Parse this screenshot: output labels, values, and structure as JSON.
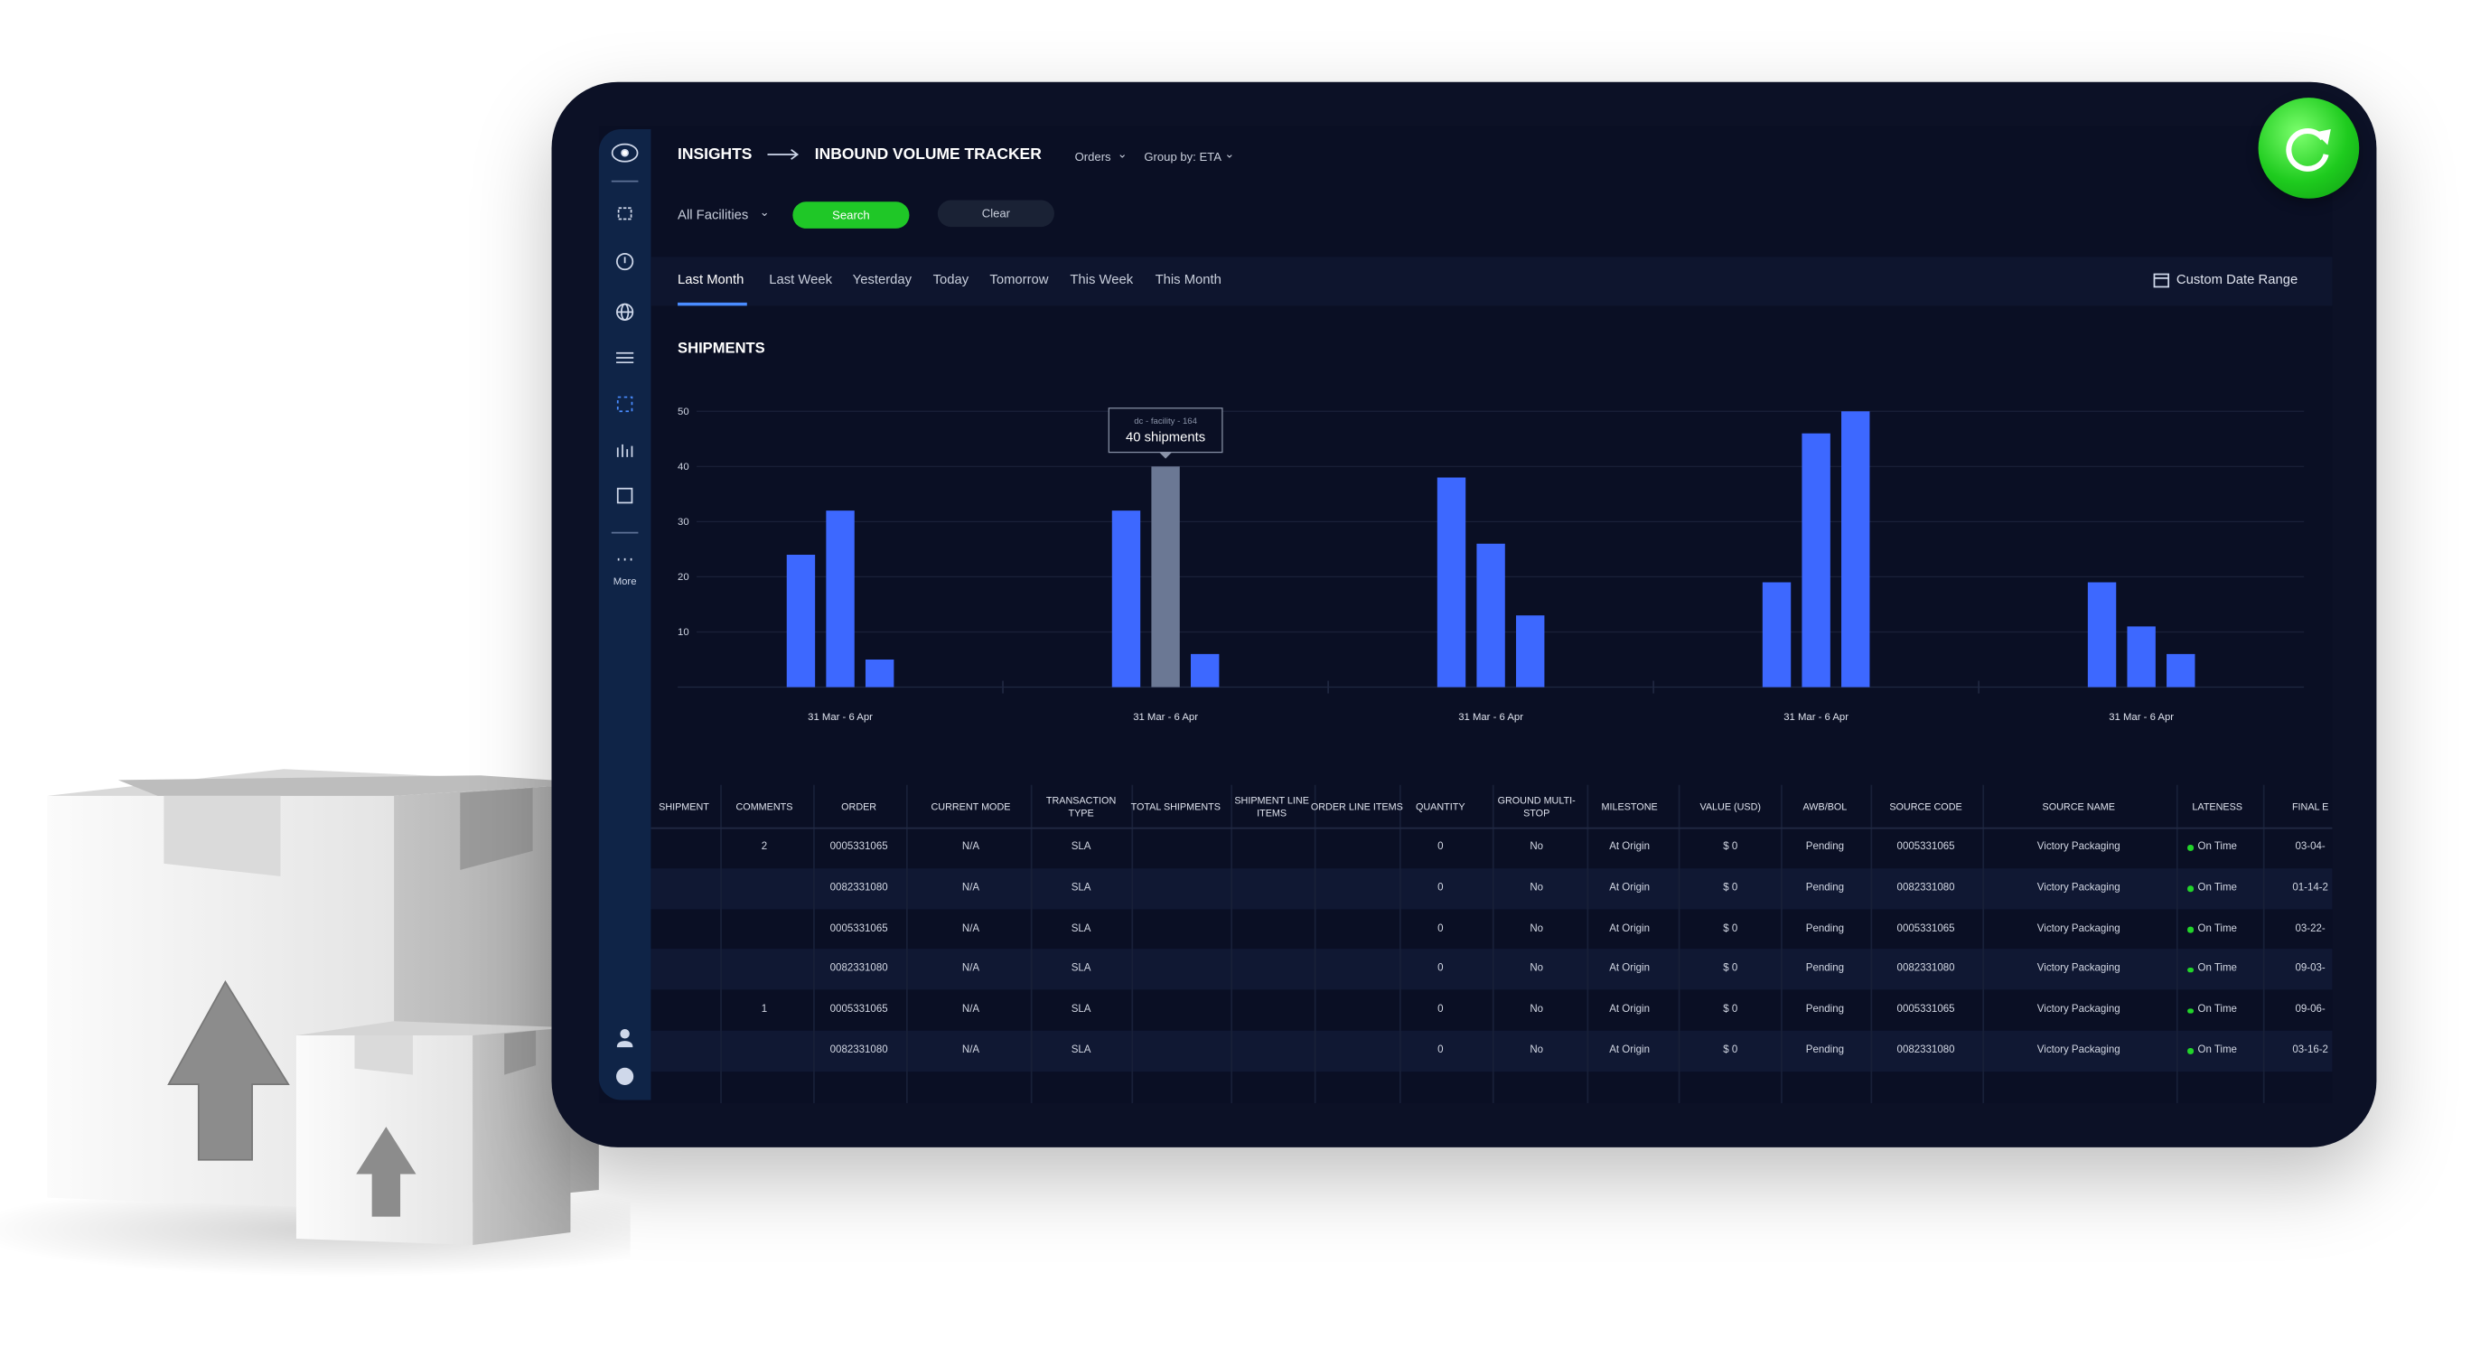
{
  "header": {
    "breadcrumb": "INSIGHTS",
    "title": "INBOUND VOLUME TRACKER",
    "menus": [
      "Orders",
      "Group by: ETA"
    ]
  },
  "filters": {
    "facility": "All Facilities",
    "search": "Search",
    "clear": "Clear"
  },
  "tabs": [
    "Last Month",
    "Last Week",
    "Yesterday",
    "Today",
    "Tomorrow",
    "This Week",
    "This Month"
  ],
  "custom_range": "Custom Date Range",
  "sidebar": {
    "more": "More"
  },
  "chart_data": {
    "type": "bar",
    "title": "SHIPMENTS",
    "categories": [
      "31 Mar - 6 Apr",
      "31 Mar - 6 Apr",
      "31 Mar - 6 Apr",
      "31 Mar - 6 Apr",
      "31 Mar - 6 Apr"
    ],
    "series": [
      {
        "color": "#3d68ff",
        "values": [
          24,
          32,
          38,
          19,
          19
        ]
      },
      {
        "color": "#3d68ff",
        "values": [
          32,
          40,
          26,
          46,
          11
        ]
      },
      {
        "color": "#3d68ff",
        "values": [
          5,
          6,
          13,
          50,
          6
        ]
      }
    ],
    "ylim": [
      0,
      50
    ],
    "yticks": [
      10,
      20,
      30,
      40,
      50
    ],
    "grid": true,
    "tooltip": {
      "series": 1,
      "index": 1,
      "color": "#6b7894",
      "title": "dc - facility - 164",
      "text": "40 shipments"
    }
  },
  "table": {
    "columns": [
      "SHIPMENT",
      "COMMENTS",
      "ORDER",
      "CURRENT MODE",
      "TRANSACTION TYPE",
      "TOTAL SHIPMENTS",
      "SHIPMENT LINE ITEMS",
      "ORDER LINE ITEMS",
      "QUANTITY",
      "GROUND MULTI-STOP",
      "MILESTONE",
      "VALUE (USD)",
      "AWB/BOL",
      "SOURCE CODE",
      "SOURCE NAME",
      "LATENESS",
      "FINAL E"
    ],
    "rows": [
      [
        null,
        "2",
        "0005331065",
        "N/A",
        "SLA",
        null,
        null,
        null,
        "0",
        "No",
        "At Origin",
        "$ 0",
        "Pending",
        "0005331065",
        "Victory Packaging",
        "On Time",
        "03-04-"
      ],
      [
        null,
        null,
        "0082331080",
        "N/A",
        "SLA",
        null,
        null,
        null,
        "0",
        "No",
        "At Origin",
        "$ 0",
        "Pending",
        "0082331080",
        "Victory Packaging",
        "On Time",
        "01-14-2"
      ],
      [
        null,
        null,
        "0005331065",
        "N/A",
        "SLA",
        null,
        null,
        null,
        "0",
        "No",
        "At Origin",
        "$ 0",
        "Pending",
        "0005331065",
        "Victory Packaging",
        "On Time",
        "03-22-"
      ],
      [
        null,
        null,
        "0082331080",
        "N/A",
        "SLA",
        null,
        null,
        null,
        "0",
        "No",
        "At Origin",
        "$ 0",
        "Pending",
        "0082331080",
        "Victory Packaging",
        "On Time",
        "09-03-"
      ],
      [
        null,
        "1",
        "0005331065",
        "N/A",
        "SLA",
        null,
        null,
        null,
        "0",
        "No",
        "At Origin",
        "$ 0",
        "Pending",
        "0005331065",
        "Victory Packaging",
        "On Time",
        "09-06-"
      ],
      [
        null,
        null,
        "0082331080",
        "N/A",
        "SLA",
        null,
        null,
        null,
        "0",
        "No",
        "At Origin",
        "$ 0",
        "Pending",
        "0082331080",
        "Victory Packaging",
        "On Time",
        "03-16-2"
      ]
    ]
  }
}
